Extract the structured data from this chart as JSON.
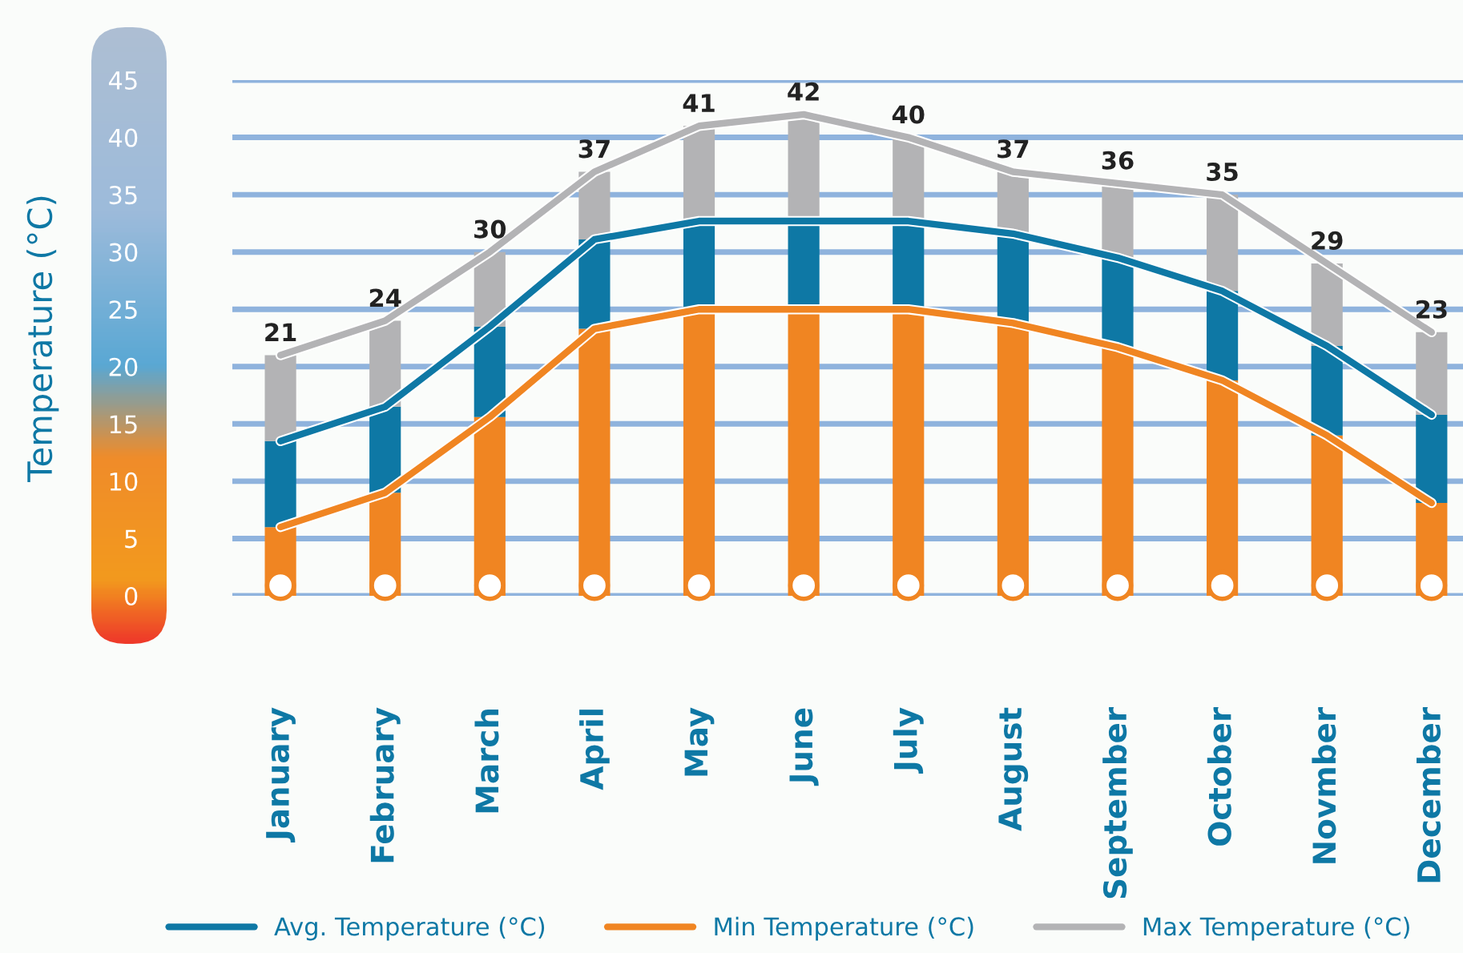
{
  "chart_data": {
    "type": "bar",
    "ylabel": "Temperature (°C)",
    "categories": [
      "January",
      "February",
      "March",
      "April",
      "May",
      "June",
      "July",
      "August",
      "September",
      "October",
      "Novmber",
      "December"
    ],
    "stacked": true,
    "series": [
      {
        "type": "bar",
        "color": "#f08522",
        "values": [
          6,
          9,
          15.6,
          23.3,
          25,
          25,
          25,
          23.8,
          21.7,
          18.8,
          14,
          8.1
        ]
      },
      {
        "type": "bar",
        "color": "#0e78a5",
        "values": [
          7.5,
          7.5,
          7.9,
          7.8,
          7.7,
          7.7,
          7.7,
          7.8,
          7.8,
          7.8,
          7.8,
          7.7
        ]
      },
      {
        "type": "bar",
        "color": "#b3b3b5",
        "values": [
          7.5,
          7.5,
          6.5,
          5.9,
          8.3,
          9.3,
          7.3,
          5.4,
          6.5,
          8.4,
          7.2,
          7.2
        ]
      },
      {
        "type": "line",
        "name": "Avg. Temperature (°C)",
        "color": "#0e78a5",
        "values": [
          13.5,
          16.5,
          23.5,
          31.1,
          32.7,
          32.7,
          32.7,
          31.6,
          29.5,
          26.6,
          21.8,
          15.8
        ]
      },
      {
        "type": "line",
        "name": "Min Temperature (°C)",
        "color": "#f08522",
        "values": [
          6,
          9,
          15.6,
          23.3,
          25,
          25,
          25,
          23.8,
          21.7,
          18.8,
          14,
          8.1
        ]
      },
      {
        "type": "line",
        "name": "Max Temperature (°C)",
        "color": "#b3b3b5",
        "values": [
          21,
          24,
          30,
          37,
          41,
          42,
          40,
          37,
          36,
          35,
          29,
          23
        ]
      }
    ],
    "totals": [
      "21",
      "24",
      "30",
      "37",
      "41",
      "42",
      "40",
      "37",
      "36",
      "35",
      "29",
      "23"
    ],
    "ylim": [
      0,
      45
    ],
    "yticks": [
      0,
      5,
      10,
      15,
      20,
      25,
      30,
      35,
      40,
      45
    ],
    "grid": "y",
    "legend": "bottom"
  }
}
